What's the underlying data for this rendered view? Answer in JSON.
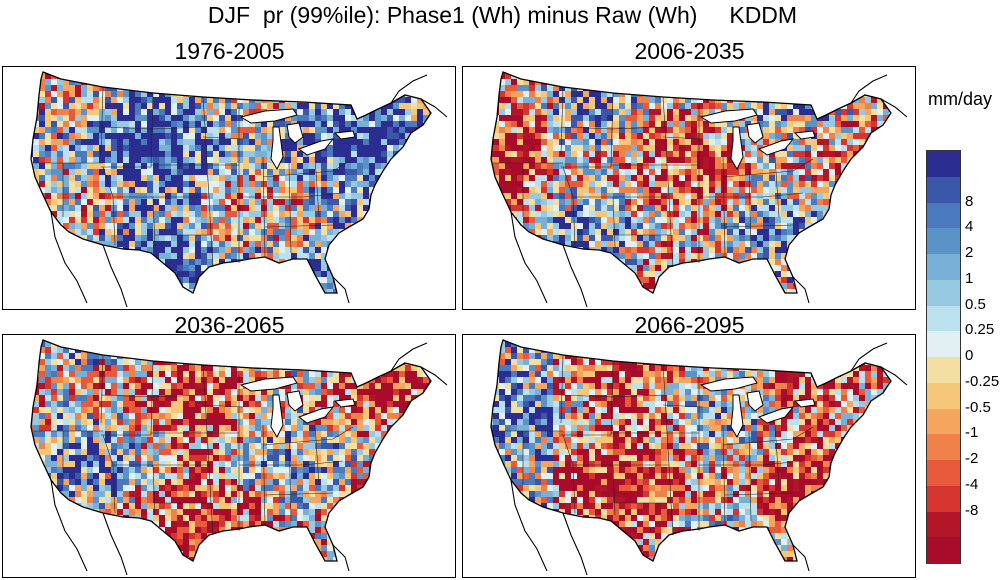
{
  "title": "DJF  pr (99%ile): Phase1 (Wh) minus Raw (Wh)     KDDM",
  "units": "mm/day",
  "panels": [
    {
      "label": "1976-2005",
      "mean_shift": 0.35,
      "west_bias": 0.0
    },
    {
      "label": "2006-2035",
      "mean_shift": -0.1,
      "west_bias": 0.15
    },
    {
      "label": "2036-2065",
      "mean_shift": -0.2,
      "west_bias": -0.1
    },
    {
      "label": "2066-2095",
      "mean_shift": -0.35,
      "west_bias": -0.2
    }
  ],
  "colorbar": {
    "colors": [
      "#2c2d91",
      "#3a57a8",
      "#4a79bd",
      "#5b93c8",
      "#79b0d8",
      "#98c9e3",
      "#bbe0ee",
      "#e0f0f3",
      "#f4dfa3",
      "#f7c779",
      "#f5a55e",
      "#ef8149",
      "#e75a3b",
      "#d6352f",
      "#b21528",
      "#a80c2a"
    ],
    "labels": [
      "8",
      "4",
      "2",
      "1",
      "0.5",
      "0.25",
      "0",
      "-0.25",
      "-0.5",
      "-1",
      "-2",
      "-4",
      "-8"
    ]
  }
}
